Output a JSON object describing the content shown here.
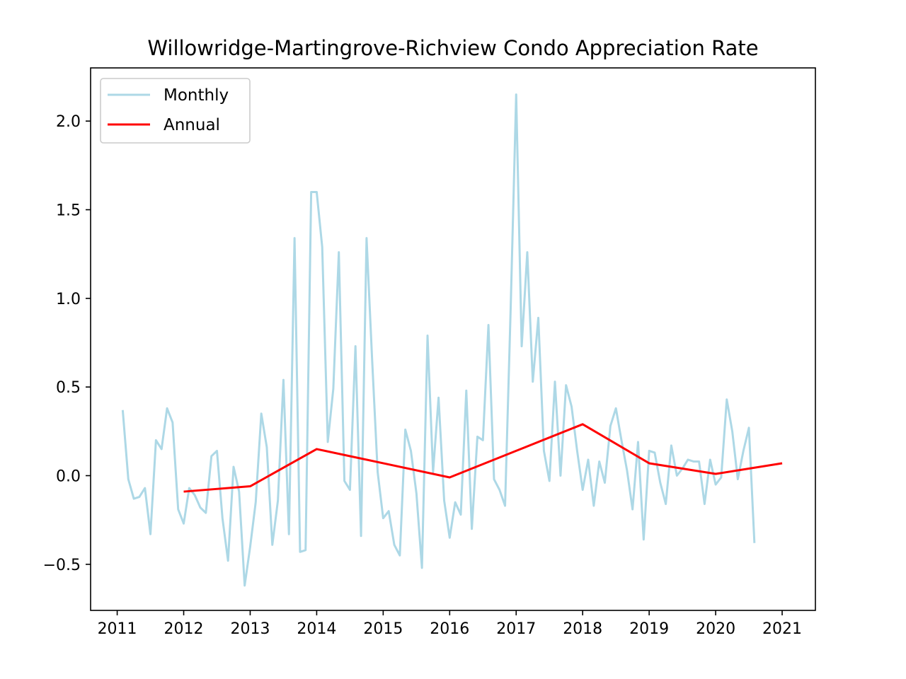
{
  "chart_data": {
    "type": "line",
    "title": "Willowridge-Martingrove-Richview Condo Appreciation Rate",
    "xlabel": "",
    "ylabel": "",
    "xlim": [
      2010.6,
      2021.5
    ],
    "ylim": [
      -0.76,
      2.3
    ],
    "x_ticks": [
      2011,
      2012,
      2013,
      2014,
      2015,
      2016,
      2017,
      2018,
      2019,
      2020,
      2021
    ],
    "y_ticks": [
      -0.5,
      0.0,
      0.5,
      1.0,
      1.5,
      2.0
    ],
    "y_tick_labels": [
      "−0.5",
      "0.0",
      "0.5",
      "1.0",
      "1.5",
      "2.0"
    ],
    "grid": false,
    "legend": {
      "position": "upper-left",
      "entries": [
        "Monthly",
        "Annual"
      ]
    },
    "series": [
      {
        "name": "Monthly",
        "color": "#add8e6",
        "x": [
          2011.083,
          2011.167,
          2011.25,
          2011.333,
          2011.417,
          2011.5,
          2011.583,
          2011.667,
          2011.75,
          2011.833,
          2011.917,
          2012.0,
          2012.083,
          2012.167,
          2012.25,
          2012.333,
          2012.417,
          2012.5,
          2012.583,
          2012.667,
          2012.75,
          2012.833,
          2012.917,
          2013.0,
          2013.083,
          2013.167,
          2013.25,
          2013.333,
          2013.417,
          2013.5,
          2013.583,
          2013.667,
          2013.75,
          2013.833,
          2013.917,
          2014.0,
          2014.083,
          2014.167,
          2014.25,
          2014.333,
          2014.417,
          2014.5,
          2014.583,
          2014.667,
          2014.75,
          2014.833,
          2014.917,
          2015.0,
          2015.083,
          2015.167,
          2015.25,
          2015.333,
          2015.417,
          2015.5,
          2015.583,
          2015.667,
          2015.75,
          2015.833,
          2015.917,
          2016.0,
          2016.083,
          2016.167,
          2016.25,
          2016.333,
          2016.417,
          2016.5,
          2016.583,
          2016.667,
          2016.75,
          2016.833,
          2016.917,
          2017.0,
          2017.083,
          2017.167,
          2017.25,
          2017.333,
          2017.417,
          2017.5,
          2017.583,
          2017.667,
          2017.75,
          2017.833,
          2017.917,
          2018.0,
          2018.083,
          2018.167,
          2018.25,
          2018.333,
          2018.417,
          2018.5,
          2018.583,
          2018.667,
          2018.75,
          2018.833,
          2018.917,
          2019.0,
          2019.083,
          2019.167,
          2019.25,
          2019.333,
          2019.417,
          2019.5,
          2019.583,
          2019.667,
          2019.75,
          2019.833,
          2019.917,
          2020.0,
          2020.083,
          2020.167,
          2020.25,
          2020.333,
          2020.417,
          2020.5,
          2020.583
        ],
        "y": [
          0.37,
          -0.02,
          -0.13,
          -0.12,
          -0.07,
          -0.33,
          0.2,
          0.15,
          0.38,
          0.3,
          -0.19,
          -0.27,
          -0.07,
          -0.11,
          -0.18,
          -0.21,
          0.11,
          0.14,
          -0.24,
          -0.48,
          0.05,
          -0.09,
          -0.62,
          -0.4,
          -0.15,
          0.35,
          0.16,
          -0.39,
          -0.14,
          0.54,
          -0.33,
          1.34,
          -0.43,
          -0.42,
          1.6,
          1.6,
          1.29,
          0.19,
          0.49,
          1.26,
          -0.03,
          -0.08,
          0.73,
          -0.34,
          1.34,
          0.66,
          0.02,
          -0.24,
          -0.2,
          -0.39,
          -0.45,
          0.26,
          0.14,
          -0.1,
          -0.52,
          0.79,
          0.02,
          0.44,
          -0.14,
          -0.35,
          -0.15,
          -0.22,
          0.48,
          -0.3,
          0.22,
          0.2,
          0.85,
          -0.02,
          -0.08,
          -0.17,
          0.94,
          2.15,
          0.73,
          1.26,
          0.53,
          0.89,
          0.14,
          -0.03,
          0.53,
          0.0,
          0.51,
          0.39,
          0.14,
          -0.08,
          0.09,
          -0.17,
          0.08,
          -0.04,
          0.28,
          0.38,
          0.2,
          0.03,
          -0.19,
          0.19,
          -0.36,
          0.14,
          0.13,
          -0.04,
          -0.16,
          0.17,
          0.0,
          0.04,
          0.09,
          0.08,
          0.08,
          -0.16,
          0.09,
          -0.05,
          -0.01,
          0.43,
          0.25,
          -0.02,
          0.14,
          0.27,
          -0.38
        ]
      },
      {
        "name": "Annual",
        "color": "#ff0000",
        "x": [
          2012,
          2013,
          2014,
          2015,
          2016,
          2017,
          2018,
          2019,
          2020,
          2021
        ],
        "y": [
          -0.09,
          -0.06,
          0.15,
          0.07,
          -0.01,
          0.14,
          0.29,
          0.07,
          0.01,
          0.07
        ]
      }
    ]
  }
}
